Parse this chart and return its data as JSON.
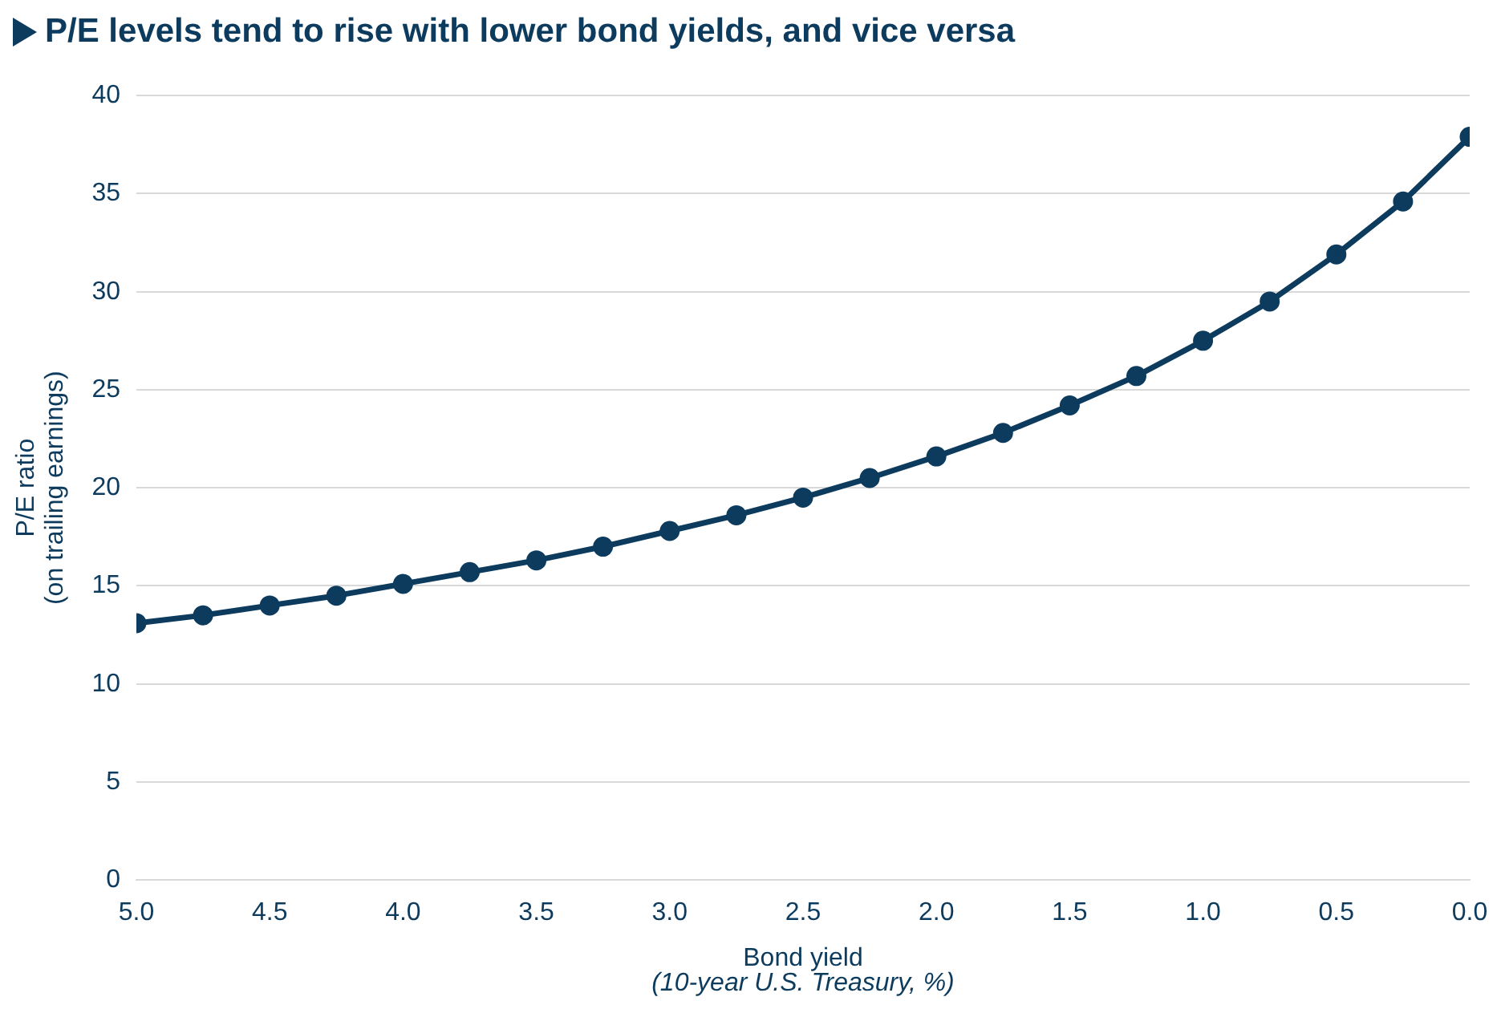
{
  "chart_data": {
    "type": "line",
    "title": "P/E levels tend to rise with lower bond yields, and vice versa",
    "xlabel": "Bond yield",
    "ylabel": "P/E ratio\n(on trailing earnings)",
    "annotations": [
      "(10-year U.S. Treasury, %)"
    ],
    "x": [
      5.0,
      4.75,
      4.5,
      4.25,
      4.0,
      3.75,
      3.5,
      3.25,
      3.0,
      2.75,
      2.5,
      2.25,
      2.0,
      1.75,
      1.5,
      1.25,
      1.0,
      0.75,
      0.5,
      0.25,
      0.0
    ],
    "series": [
      {
        "color": "#0c3b5e",
        "values": [
          13.1,
          13.5,
          14.0,
          14.5,
          15.1,
          15.7,
          16.3,
          17.0,
          17.8,
          18.6,
          19.5,
          20.5,
          21.6,
          22.8,
          24.2,
          25.7,
          27.5,
          29.5,
          31.9,
          34.6,
          37.9
        ]
      }
    ],
    "xlim": [
      5.0,
      0.0
    ],
    "xticks": [
      {
        "value": 5,
        "label": "5.0"
      },
      {
        "value": 4.5,
        "label": "4.5"
      },
      {
        "value": 4,
        "label": "4.0"
      },
      {
        "value": 3.5,
        "label": "3.5"
      },
      {
        "value": 3,
        "label": "3.0"
      },
      {
        "value": 2.5,
        "label": "2.5"
      },
      {
        "value": 2,
        "label": "2.0"
      },
      {
        "value": 1.5,
        "label": "1.5"
      },
      {
        "value": 1,
        "label": "1.0"
      },
      {
        "value": 0.5,
        "label": "0.5"
      },
      {
        "value": 0,
        "label": "0.0"
      }
    ],
    "ylim": [
      0,
      40
    ],
    "yticks": [
      0,
      5,
      10,
      15,
      20,
      25,
      30,
      35,
      40
    ],
    "grid": "y",
    "marker": "circle",
    "line_style": "solid",
    "legend": false
  }
}
